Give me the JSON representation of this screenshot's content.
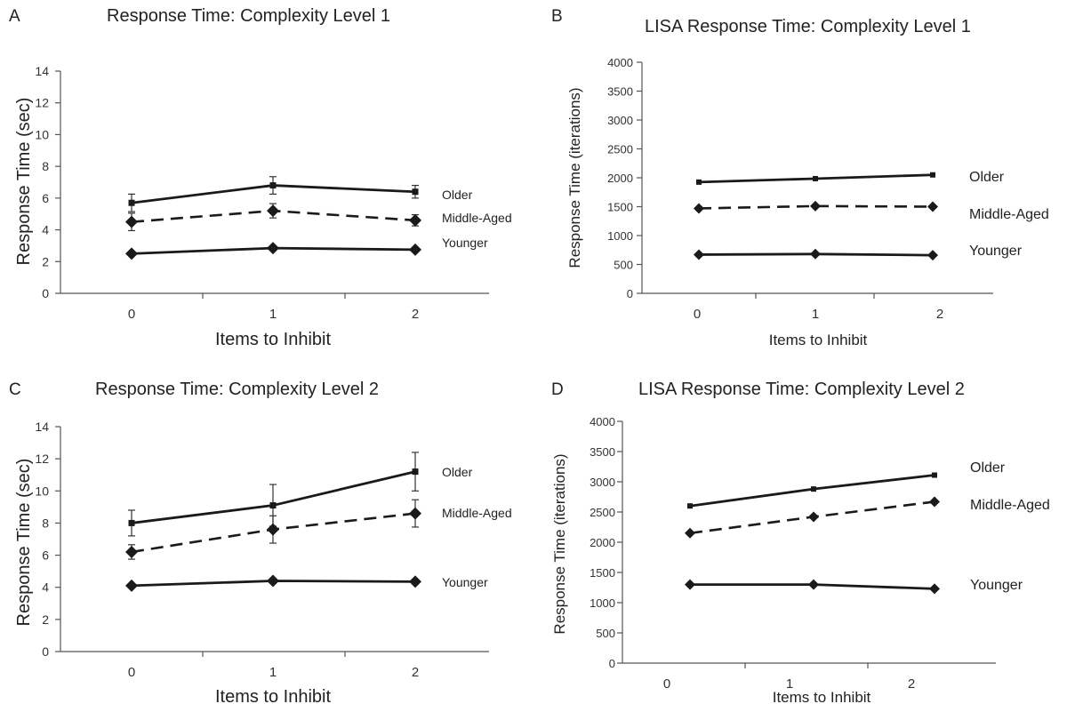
{
  "chart_data": [
    {
      "panel_letter": "A",
      "type": "line",
      "title": "Response Time: Complexity Level 1",
      "xlabel": "Items to Inhibit",
      "ylabel": "Response Time (sec)",
      "categories": [
        "0",
        "1",
        "2"
      ],
      "ylim": [
        0,
        14
      ],
      "yticks": [
        "0",
        "2",
        "4",
        "6",
        "8",
        "10",
        "12",
        "14"
      ],
      "error_bars": true,
      "series": [
        {
          "name": "Older",
          "values": [
            5.7,
            6.8,
            6.4
          ],
          "errors": [
            0.55,
            0.55,
            0.4
          ],
          "style": "solid",
          "marker": "square"
        },
        {
          "name": "Middle-Aged",
          "values": [
            4.5,
            5.2,
            4.6
          ],
          "errors": [
            0.55,
            0.45,
            0.35
          ],
          "style": "dashed",
          "marker": "diamond"
        },
        {
          "name": "Younger",
          "values": [
            2.5,
            2.85,
            2.75
          ],
          "errors": [
            0,
            0,
            0
          ],
          "style": "solid",
          "marker": "diamond"
        }
      ]
    },
    {
      "panel_letter": "B",
      "type": "line",
      "title": "LISA Response Time: Complexity Level 1",
      "xlabel": "Items to Inhibit",
      "ylabel": "Response Time (iterations)",
      "categories": [
        "0",
        "1",
        "2"
      ],
      "ylim": [
        0,
        4000
      ],
      "yticks": [
        "0",
        "500",
        "1000",
        "1500",
        "2000",
        "2500",
        "3000",
        "3500",
        "4000"
      ],
      "error_bars": false,
      "series": [
        {
          "name": "Older",
          "values": [
            1925,
            1985,
            2050
          ],
          "style": "solid",
          "marker": "square"
        },
        {
          "name": "Middle-Aged",
          "values": [
            1470,
            1510,
            1500
          ],
          "style": "dashed",
          "marker": "diamond"
        },
        {
          "name": "Younger",
          "values": [
            670,
            680,
            660
          ],
          "style": "solid",
          "marker": "diamond"
        }
      ]
    },
    {
      "panel_letter": "C",
      "type": "line",
      "title": "Response Time: Complexity Level 2",
      "xlabel": "Items to Inhibit",
      "ylabel": "Response Time (sec)",
      "categories": [
        "0",
        "1",
        "2"
      ],
      "ylim": [
        0,
        14
      ],
      "yticks": [
        "0",
        "2",
        "4",
        "6",
        "8",
        "10",
        "12",
        "14"
      ],
      "error_bars": true,
      "series": [
        {
          "name": "Older",
          "values": [
            8.0,
            9.1,
            11.2
          ],
          "errors": [
            0.8,
            1.3,
            1.2
          ],
          "style": "solid",
          "marker": "square"
        },
        {
          "name": "Middle-Aged",
          "values": [
            6.2,
            7.6,
            8.6
          ],
          "errors": [
            0.45,
            0.85,
            0.85
          ],
          "style": "dashed",
          "marker": "diamond"
        },
        {
          "name": "Younger",
          "values": [
            4.1,
            4.4,
            4.35
          ],
          "errors": [
            0,
            0,
            0
          ],
          "style": "solid",
          "marker": "diamond"
        }
      ]
    },
    {
      "panel_letter": "D",
      "type": "line",
      "title": "LISA Response Time: Complexity Level 2",
      "xlabel": "Items to Inhibit",
      "ylabel": "Response Time (iterations)",
      "categories": [
        "0",
        "1",
        "2"
      ],
      "ylim": [
        0,
        4000
      ],
      "yticks": [
        "0",
        "500",
        "1000",
        "1500",
        "2000",
        "2500",
        "3000",
        "3500",
        "4000"
      ],
      "error_bars": false,
      "series": [
        {
          "name": "Older",
          "values": [
            2600,
            2880,
            3110
          ],
          "style": "solid",
          "marker": "square"
        },
        {
          "name": "Middle-Aged",
          "values": [
            2150,
            2420,
            2670
          ],
          "style": "dashed",
          "marker": "diamond"
        },
        {
          "name": "Younger",
          "values": [
            1300,
            1300,
            1230
          ],
          "style": "solid",
          "marker": "diamond"
        }
      ]
    }
  ]
}
